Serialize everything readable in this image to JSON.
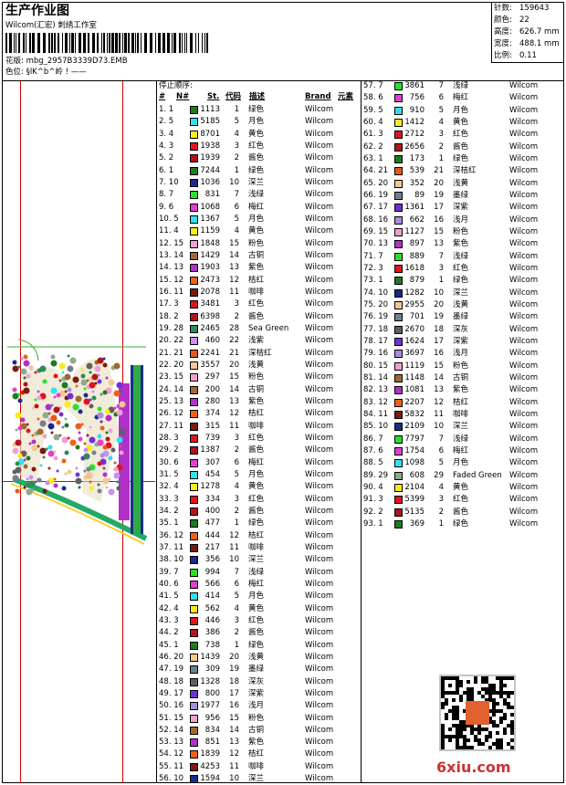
{
  "header": {
    "title": "生产作业图",
    "studio": "Wilcom(汇宏) 刺绣工作室",
    "design": "花版: mbg_2957B3339D73.EMB",
    "colorway": "色位: §lK^b^岭 ! ——"
  },
  "info": [
    {
      "label": "针数:",
      "value": "159643"
    },
    {
      "label": "颜色:",
      "value": "22"
    },
    {
      "label": "高度:",
      "value": "626.7 mm"
    },
    {
      "label": "宽度:",
      "value": "488.1 mm"
    },
    {
      "label": "比例:",
      "value": "0.11"
    }
  ],
  "table": {
    "caption": "停止顺序:",
    "columns": [
      "#",
      "N#",
      "St.",
      "代码",
      "描述",
      "Brand",
      "元素"
    ],
    "palette": {
      "1": "#1e7b1e",
      "2": "#b0141e",
      "3": "#e0141e",
      "4": "#f8ec18",
      "5": "#30e0f0",
      "6": "#e040d0",
      "7": "#28e028",
      "10": "#1a2a8a",
      "11": "#7a1a10",
      "12": "#f06018",
      "13": "#b030c8",
      "14": "#a06830",
      "15": "#f0a0d0",
      "16": "#a88ce0",
      "17": "#7030d8",
      "18": "#606060",
      "19": "#708090",
      "20": "#f0c890",
      "21": "#e85818",
      "22": "#c890f0",
      "28": "#2e8b57",
      "29": "#90a890"
    },
    "rows": [
      [
        "1. 1",
        "1113",
        "1",
        "绿色",
        "Wilcom"
      ],
      [
        "2. 5",
        "5185",
        "5",
        "月色",
        "Wilcom"
      ],
      [
        "3. 4",
        "8701",
        "4",
        "黄色",
        "Wilcom"
      ],
      [
        "4. 3",
        "1938",
        "3",
        "红色",
        "Wilcom"
      ],
      [
        "5. 2",
        "1939",
        "2",
        "酱色",
        "Wilcom"
      ],
      [
        "6. 1",
        "7244",
        "1",
        "绿色",
        "Wilcom"
      ],
      [
        "7. 10",
        "1036",
        "10",
        "深兰",
        "Wilcom"
      ],
      [
        "8. 7",
        "831",
        "7",
        "浅绿",
        "Wilcom"
      ],
      [
        "9. 6",
        "1068",
        "6",
        "梅红",
        "Wilcom"
      ],
      [
        "10. 5",
        "1367",
        "5",
        "月色",
        "Wilcom"
      ],
      [
        "11. 4",
        "1159",
        "4",
        "黄色",
        "Wilcom"
      ],
      [
        "12. 15",
        "1848",
        "15",
        "粉色",
        "Wilcom"
      ],
      [
        "13. 14",
        "1429",
        "14",
        "古铜",
        "Wilcom"
      ],
      [
        "14. 13",
        "1903",
        "13",
        "紫色",
        "Wilcom"
      ],
      [
        "15. 12",
        "2473",
        "12",
        "桔红",
        "Wilcom"
      ],
      [
        "16. 11",
        "2078",
        "11",
        "咖啡",
        "Wilcom"
      ],
      [
        "17. 3",
        "3481",
        "3",
        "红色",
        "Wilcom"
      ],
      [
        "18. 2",
        "6398",
        "2",
        "酱色",
        "Wilcom"
      ],
      [
        "19. 28",
        "2465",
        "28",
        "Sea Green",
        "Wilcom"
      ],
      [
        "20. 22",
        "460",
        "22",
        "浅紫",
        "Wilcom"
      ],
      [
        "21. 21",
        "2241",
        "21",
        "深桔红",
        "Wilcom"
      ],
      [
        "22. 20",
        "3557",
        "20",
        "浅黄",
        "Wilcom"
      ],
      [
        "23. 15",
        "297",
        "15",
        "粉色",
        "Wilcom"
      ],
      [
        "24. 14",
        "200",
        "14",
        "古铜",
        "Wilcom"
      ],
      [
        "25. 13",
        "280",
        "13",
        "紫色",
        "Wilcom"
      ],
      [
        "26. 12",
        "374",
        "12",
        "桔红",
        "Wilcom"
      ],
      [
        "27. 11",
        "315",
        "11",
        "咖啡",
        "Wilcom"
      ],
      [
        "28. 3",
        "739",
        "3",
        "红色",
        "Wilcom"
      ],
      [
        "29. 2",
        "1387",
        "2",
        "酱色",
        "Wilcom"
      ],
      [
        "30. 6",
        "307",
        "6",
        "梅红",
        "Wilcom"
      ],
      [
        "31. 5",
        "454",
        "5",
        "月色",
        "Wilcom"
      ],
      [
        "32. 4",
        "1278",
        "4",
        "黄色",
        "Wilcom"
      ],
      [
        "33. 3",
        "334",
        "3",
        "红色",
        "Wilcom"
      ],
      [
        "34. 2",
        "400",
        "2",
        "酱色",
        "Wilcom"
      ],
      [
        "35. 1",
        "477",
        "1",
        "绿色",
        "Wilcom"
      ],
      [
        "36. 12",
        "444",
        "12",
        "桔红",
        "Wilcom"
      ],
      [
        "37. 11",
        "217",
        "11",
        "咖啡",
        "Wilcom"
      ],
      [
        "38. 10",
        "356",
        "10",
        "深兰",
        "Wilcom"
      ],
      [
        "39. 7",
        "994",
        "7",
        "浅绿",
        "Wilcom"
      ],
      [
        "40. 6",
        "566",
        "6",
        "梅红",
        "Wilcom"
      ],
      [
        "41. 5",
        "414",
        "5",
        "月色",
        "Wilcom"
      ],
      [
        "42. 4",
        "562",
        "4",
        "黄色",
        "Wilcom"
      ],
      [
        "43. 3",
        "446",
        "3",
        "红色",
        "Wilcom"
      ],
      [
        "44. 2",
        "386",
        "2",
        "酱色",
        "Wilcom"
      ],
      [
        "45. 1",
        "738",
        "1",
        "绿色",
        "Wilcom"
      ],
      [
        "46. 20",
        "1439",
        "20",
        "浅黄",
        "Wilcom"
      ],
      [
        "47. 19",
        "309",
        "19",
        "墨绿",
        "Wilcom"
      ],
      [
        "48. 18",
        "1328",
        "18",
        "深灰",
        "Wilcom"
      ],
      [
        "49. 17",
        "800",
        "17",
        "深紫",
        "Wilcom"
      ],
      [
        "50. 16",
        "1977",
        "16",
        "浅月",
        "Wilcom"
      ],
      [
        "51. 15",
        "956",
        "15",
        "粉色",
        "Wilcom"
      ],
      [
        "52. 14",
        "834",
        "14",
        "古铜",
        "Wilcom"
      ],
      [
        "53. 13",
        "851",
        "13",
        "紫色",
        "Wilcom"
      ],
      [
        "54. 12",
        "1839",
        "12",
        "桔红",
        "Wilcom"
      ],
      [
        "55. 11",
        "4253",
        "11",
        "咖啡",
        "Wilcom"
      ],
      [
        "56. 10",
        "1594",
        "10",
        "深兰",
        "Wilcom"
      ],
      [
        "57. 7",
        "3861",
        "7",
        "浅绿",
        "Wilcom"
      ],
      [
        "58. 6",
        "756",
        "6",
        "梅红",
        "Wilcom"
      ],
      [
        "59. 5",
        "910",
        "5",
        "月色",
        "Wilcom"
      ],
      [
        "60. 4",
        "1412",
        "4",
        "黄色",
        "Wilcom"
      ],
      [
        "61. 3",
        "2712",
        "3",
        "红色",
        "Wilcom"
      ],
      [
        "62. 2",
        "2656",
        "2",
        "酱色",
        "Wilcom"
      ],
      [
        "63. 1",
        "173",
        "1",
        "绿色",
        "Wilcom"
      ],
      [
        "64. 21",
        "539",
        "21",
        "深桔红",
        "Wilcom"
      ],
      [
        "65. 20",
        "352",
        "20",
        "浅黄",
        "Wilcom"
      ],
      [
        "66. 19",
        "89",
        "19",
        "墨绿",
        "Wilcom"
      ],
      [
        "67. 17",
        "1361",
        "17",
        "深紫",
        "Wilcom"
      ],
      [
        "68. 16",
        "662",
        "16",
        "浅月",
        "Wilcom"
      ],
      [
        "69. 15",
        "1127",
        "15",
        "粉色",
        "Wilcom"
      ],
      [
        "70. 13",
        "897",
        "13",
        "紫色",
        "Wilcom"
      ],
      [
        "71. 7",
        "889",
        "7",
        "浅绿",
        "Wilcom"
      ],
      [
        "72. 3",
        "1618",
        "3",
        "红色",
        "Wilcom"
      ],
      [
        "73. 1",
        "879",
        "1",
        "绿色",
        "Wilcom"
      ],
      [
        "74. 10",
        "1282",
        "10",
        "深兰",
        "Wilcom"
      ],
      [
        "75. 20",
        "2955",
        "20",
        "浅黄",
        "Wilcom"
      ],
      [
        "76. 19",
        "701",
        "19",
        "墨绿",
        "Wilcom"
      ],
      [
        "77. 18",
        "2670",
        "18",
        "深灰",
        "Wilcom"
      ],
      [
        "78. 17",
        "1624",
        "17",
        "深紫",
        "Wilcom"
      ],
      [
        "79. 16",
        "3697",
        "16",
        "浅月",
        "Wilcom"
      ],
      [
        "80. 15",
        "1119",
        "15",
        "粉色",
        "Wilcom"
      ],
      [
        "81. 14",
        "1148",
        "14",
        "古铜",
        "Wilcom"
      ],
      [
        "82. 13",
        "1081",
        "13",
        "紫色",
        "Wilcom"
      ],
      [
        "83. 12",
        "2207",
        "12",
        "桔红",
        "Wilcom"
      ],
      [
        "84. 11",
        "5832",
        "11",
        "咖啡",
        "Wilcom"
      ],
      [
        "85. 10",
        "2109",
        "10",
        "深兰",
        "Wilcom"
      ],
      [
        "86. 7",
        "7797",
        "7",
        "浅绿",
        "Wilcom"
      ],
      [
        "87. 6",
        "1754",
        "6",
        "梅红",
        "Wilcom"
      ],
      [
        "88. 5",
        "1098",
        "5",
        "月色",
        "Wilcom"
      ],
      [
        "89. 29",
        "608",
        "29",
        "Faded Green",
        "Wilcom"
      ],
      [
        "90. 4",
        "2104",
        "4",
        "黄色",
        "Wilcom"
      ],
      [
        "91. 3",
        "5399",
        "3",
        "红色",
        "Wilcom"
      ],
      [
        "92. 2",
        "5135",
        "2",
        "酱色",
        "Wilcom"
      ],
      [
        "93. 1",
        "369",
        "1",
        "绿色",
        "Wilcom"
      ]
    ]
  },
  "watermark": "6xiu.com"
}
